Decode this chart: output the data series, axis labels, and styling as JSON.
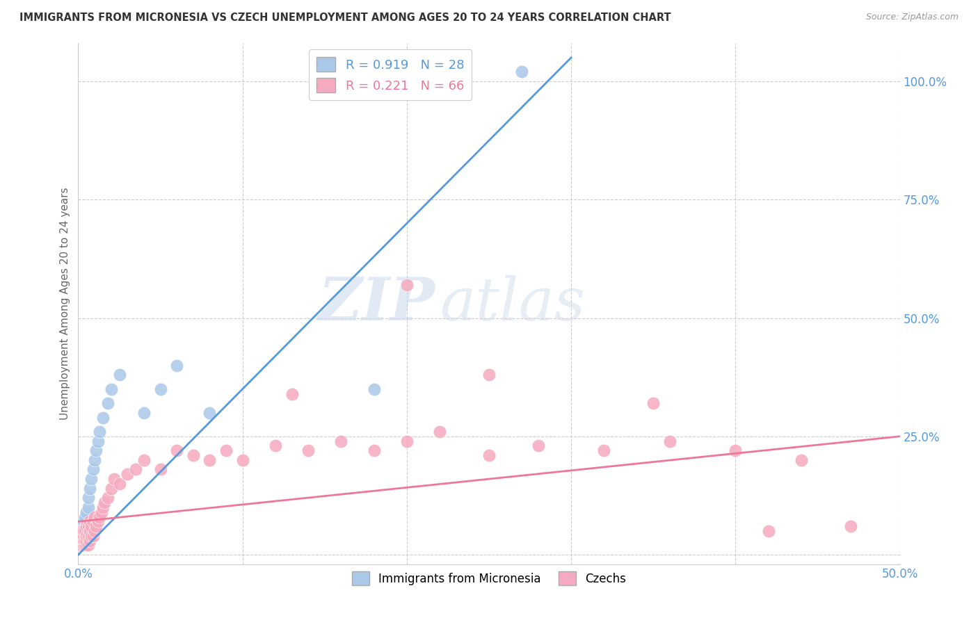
{
  "title": "IMMIGRANTS FROM MICRONESIA VS CZECH UNEMPLOYMENT AMONG AGES 20 TO 24 YEARS CORRELATION CHART",
  "source": "Source: ZipAtlas.com",
  "ylabel": "Unemployment Among Ages 20 to 24 years",
  "blue_label": "Immigrants from Micronesia",
  "pink_label": "Czechs",
  "blue_R": 0.919,
  "blue_N": 28,
  "pink_R": 0.221,
  "pink_N": 66,
  "xlim": [
    0.0,
    0.5
  ],
  "ylim": [
    -0.02,
    1.08
  ],
  "ytick_vals": [
    0.0,
    0.25,
    0.5,
    0.75,
    1.0
  ],
  "ytick_labels": [
    "",
    "25.0%",
    "50.0%",
    "75.0%",
    "100.0%"
  ],
  "blue_color": "#aac8e8",
  "pink_color": "#f5aabf",
  "blue_line_color": "#5599dd",
  "pink_line_color": "#ee7799",
  "watermark_zip": "ZIP",
  "watermark_atlas": "atlas",
  "blue_scatter_x": [
    0.001,
    0.002,
    0.002,
    0.003,
    0.003,
    0.004,
    0.004,
    0.005,
    0.005,
    0.006,
    0.006,
    0.007,
    0.008,
    0.009,
    0.01,
    0.011,
    0.012,
    0.013,
    0.015,
    0.018,
    0.02,
    0.025,
    0.04,
    0.05,
    0.06,
    0.08,
    0.18,
    0.27
  ],
  "blue_scatter_y": [
    0.02,
    0.03,
    0.05,
    0.04,
    0.07,
    0.05,
    0.08,
    0.06,
    0.09,
    0.1,
    0.12,
    0.14,
    0.16,
    0.18,
    0.2,
    0.22,
    0.24,
    0.26,
    0.29,
    0.32,
    0.35,
    0.38,
    0.3,
    0.35,
    0.4,
    0.3,
    0.35,
    1.02
  ],
  "pink_scatter_x": [
    0.001,
    0.001,
    0.001,
    0.002,
    0.002,
    0.002,
    0.003,
    0.003,
    0.003,
    0.003,
    0.004,
    0.004,
    0.004,
    0.005,
    0.005,
    0.005,
    0.005,
    0.006,
    0.006,
    0.006,
    0.007,
    0.007,
    0.007,
    0.008,
    0.008,
    0.009,
    0.009,
    0.01,
    0.01,
    0.011,
    0.012,
    0.013,
    0.014,
    0.015,
    0.016,
    0.018,
    0.02,
    0.022,
    0.025,
    0.03,
    0.035,
    0.04,
    0.05,
    0.06,
    0.07,
    0.08,
    0.09,
    0.1,
    0.12,
    0.14,
    0.16,
    0.18,
    0.2,
    0.22,
    0.25,
    0.28,
    0.32,
    0.36,
    0.4,
    0.44,
    0.2,
    0.25,
    0.13,
    0.35,
    0.42,
    0.47
  ],
  "pink_scatter_y": [
    0.02,
    0.03,
    0.04,
    0.02,
    0.03,
    0.05,
    0.02,
    0.03,
    0.04,
    0.05,
    0.02,
    0.03,
    0.05,
    0.02,
    0.03,
    0.04,
    0.06,
    0.02,
    0.04,
    0.06,
    0.03,
    0.05,
    0.07,
    0.04,
    0.06,
    0.04,
    0.07,
    0.05,
    0.08,
    0.06,
    0.07,
    0.08,
    0.09,
    0.1,
    0.11,
    0.12,
    0.14,
    0.16,
    0.15,
    0.17,
    0.18,
    0.2,
    0.18,
    0.22,
    0.21,
    0.2,
    0.22,
    0.2,
    0.23,
    0.22,
    0.24,
    0.22,
    0.24,
    0.26,
    0.21,
    0.23,
    0.22,
    0.24,
    0.22,
    0.2,
    0.57,
    0.38,
    0.34,
    0.32,
    0.05,
    0.06
  ],
  "blue_line_x": [
    0.0,
    0.3
  ],
  "blue_line_y": [
    0.0,
    1.05
  ],
  "pink_line_x": [
    0.0,
    0.5
  ],
  "pink_line_y": [
    0.07,
    0.25
  ]
}
